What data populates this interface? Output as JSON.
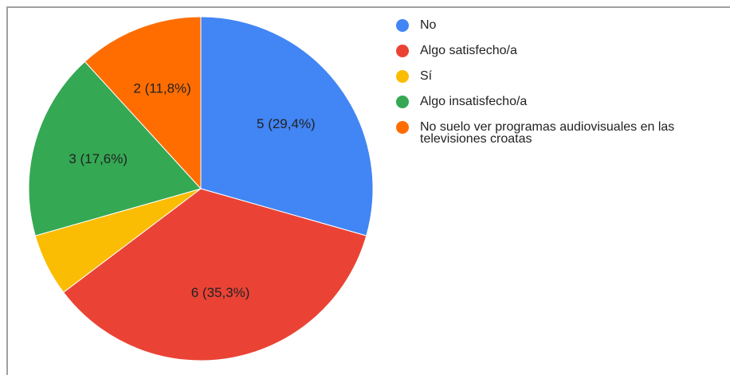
{
  "chart_data": {
    "type": "pie",
    "categories": [
      "No",
      "Algo satisfecho/a",
      "Sí",
      "Algo insatisfecho/a",
      "No suelo ver programas audiovisuales en las televisiones croatas"
    ],
    "values": [
      5,
      6,
      1,
      3,
      2
    ],
    "value_labels": [
      "5 (29,4%)",
      "6 (35,3%)",
      null,
      "3 (17,6%)",
      "2 (11,8%)"
    ],
    "colors": [
      "#4285f4",
      "#ea4335",
      "#fbbc04",
      "#34a853",
      "#ff6d01"
    ],
    "legend": "right"
  }
}
